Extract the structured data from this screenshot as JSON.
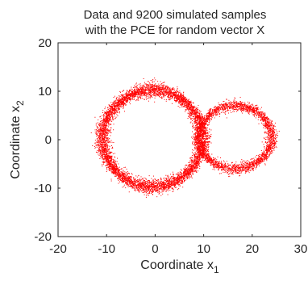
{
  "chart_data": {
    "type": "scatter",
    "title": [
      "Data and 9200 simulated samples",
      "with the PCE for random vector X"
    ],
    "xlabel": "Coordinate x",
    "xlabel_sub": "1",
    "ylabel": "Coordinate x",
    "ylabel_sub": "2",
    "xlim": [
      -20,
      30
    ],
    "ylim": [
      -20,
      20
    ],
    "xticks": [
      -20,
      -10,
      0,
      10,
      20,
      30
    ],
    "yticks": [
      -20,
      -10,
      0,
      10,
      20
    ],
    "grid": false,
    "legend": "none",
    "point_color": "#ff0000",
    "series": [
      {
        "shape": "ring",
        "center": [
          -0.5,
          0.3
        ],
        "radius": [
          10.3,
          10.0
        ],
        "thickness": 1.5,
        "samples": 6200
      },
      {
        "shape": "ring",
        "center": [
          16.5,
          0.5
        ],
        "radius": [
          7.5,
          6.5
        ],
        "thickness": 1.2,
        "samples": 3000
      }
    ]
  }
}
